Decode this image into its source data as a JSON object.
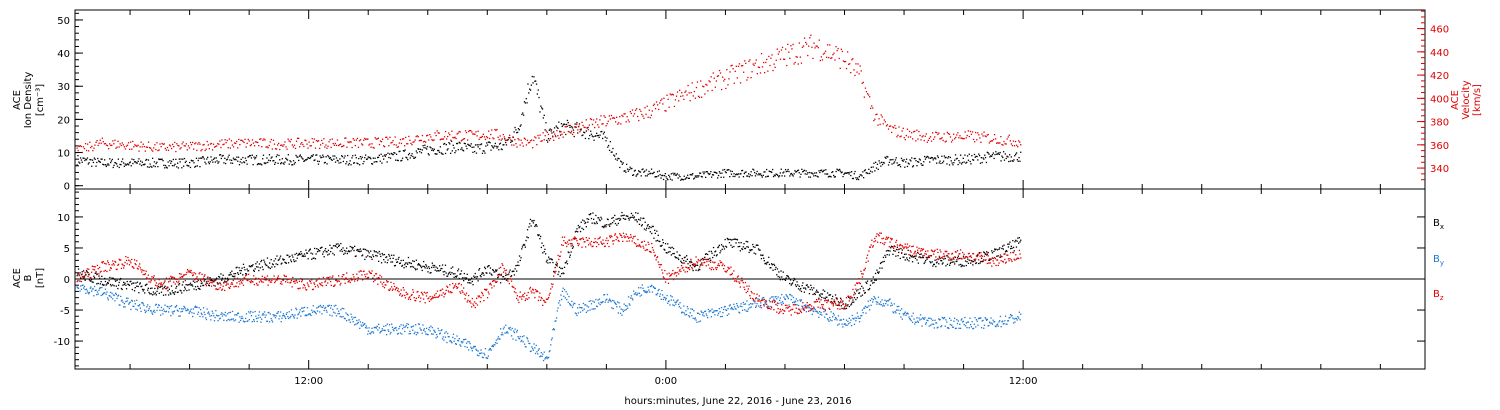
{
  "colors": {
    "density": "#000000",
    "velocity": "#e00000",
    "bx": "#000000",
    "by": "#1e78d2",
    "bz": "#e00000"
  },
  "xaxis": {
    "title": "hours:minutes, June 22, 2016 - June 23, 2016",
    "range_hours": [
      4.15,
      49.5
    ],
    "major_ticks": [
      {
        "hour": 12,
        "label": "12:00"
      },
      {
        "hour": 24,
        "label": "0:00"
      },
      {
        "hour": 36,
        "label": "12:00"
      }
    ],
    "minor_tick_step_hours": 2
  },
  "chart_data": [
    {
      "type": "scatter",
      "panel": "ion-density-velocity",
      "ylabel_left": [
        "ACE",
        "Ion Density",
        "[cm⁻³]"
      ],
      "ylabel_right": [
        "ACE",
        "Velocity",
        "[km/s]"
      ],
      "left_ylim": [
        -1,
        53
      ],
      "left_ticks": [
        0,
        10,
        20,
        30,
        40,
        50
      ],
      "right_ylim": [
        322,
        476
      ],
      "right_ticks": [
        340,
        360,
        380,
        400,
        420,
        440,
        460
      ],
      "series": [
        {
          "axis": "left",
          "x_hours": [
            4.2,
            5.0,
            6.0,
            7.0,
            8.0,
            9.0,
            10.0,
            11.0,
            12.0,
            13.0,
            14.0,
            15.0,
            16.0,
            17.0,
            17.5,
            18.0,
            18.5,
            19.0,
            19.5,
            20.0,
            20.5,
            21.0,
            21.5,
            22.0,
            22.5,
            23.0,
            23.5,
            24.0,
            25.0,
            26.0,
            27.0,
            28.0,
            29.0,
            30.0,
            30.5,
            31.0,
            31.5,
            32.0,
            33.0,
            34.0,
            35.0,
            35.9
          ],
          "values": [
            8,
            7,
            7,
            7,
            7,
            8,
            8,
            8,
            8,
            8,
            8,
            9,
            11,
            12,
            11,
            12,
            12,
            17,
            34,
            15,
            18,
            17,
            16,
            14,
            6,
            4,
            4,
            3,
            3,
            4,
            4,
            4,
            4,
            4,
            3,
            6,
            8,
            7,
            8,
            8,
            9,
            9
          ]
        },
        {
          "axis": "right",
          "x_hours": [
            4.2,
            5.0,
            6.0,
            7.0,
            8.0,
            9.0,
            10.0,
            11.0,
            12.0,
            13.0,
            14.0,
            15.0,
            16.0,
            17.0,
            17.5,
            18.0,
            18.5,
            19.0,
            19.5,
            20.0,
            20.5,
            21.0,
            21.5,
            22.0,
            22.5,
            23.0,
            23.5,
            24.0,
            25.0,
            26.0,
            27.0,
            28.0,
            29.0,
            30.0,
            30.5,
            31.0,
            31.5,
            32.0,
            33.0,
            34.0,
            35.0,
            35.9
          ],
          "values": [
            355,
            362,
            360,
            358,
            359,
            361,
            362,
            361,
            362,
            362,
            362,
            363,
            368,
            369,
            368,
            370,
            368,
            363,
            362,
            368,
            372,
            375,
            378,
            381,
            383,
            386,
            390,
            396,
            408,
            418,
            428,
            437,
            446,
            434,
            420,
            385,
            374,
            370,
            367,
            368,
            366,
            363
          ]
        }
      ]
    },
    {
      "type": "scatter",
      "panel": "magnetic-field",
      "ylabel_left": [
        "ACE",
        "B",
        "[nT]"
      ],
      "ylim": [
        -14.5,
        14.5
      ],
      "ticks": [
        -10,
        -5,
        0,
        5,
        10
      ],
      "zero_line": true,
      "legend": [
        "Bx",
        "By",
        "Bz"
      ],
      "series": [
        {
          "name": "Bx",
          "x_hours": [
            4.2,
            5.0,
            6.0,
            7.0,
            8.0,
            9.0,
            10.0,
            11.0,
            12.0,
            13.0,
            14.0,
            15.0,
            16.0,
            17.0,
            17.5,
            18.0,
            18.5,
            19.0,
            19.5,
            20.0,
            20.5,
            21.0,
            21.5,
            22.0,
            22.5,
            23.0,
            23.5,
            24.0,
            25.0,
            26.0,
            27.0,
            28.0,
            29.0,
            30.0,
            30.5,
            31.0,
            31.5,
            32.0,
            33.0,
            34.0,
            35.0,
            35.9
          ],
          "values": [
            1,
            0,
            -1,
            -2,
            -1,
            0,
            2,
            3,
            4,
            5,
            4,
            3,
            2,
            1,
            0,
            2,
            0,
            2,
            10,
            3,
            1,
            8,
            10,
            9,
            10,
            10,
            8,
            5,
            2,
            6,
            5,
            0,
            -2,
            -4,
            -2,
            0,
            5,
            4,
            3,
            3,
            4,
            6
          ]
        },
        {
          "name": "By",
          "x_hours": [
            4.2,
            5.0,
            6.0,
            7.0,
            8.0,
            9.0,
            10.0,
            11.0,
            12.0,
            13.0,
            14.0,
            15.0,
            16.0,
            17.0,
            17.5,
            18.0,
            18.5,
            19.0,
            19.5,
            20.0,
            20.5,
            21.0,
            21.5,
            22.0,
            22.5,
            23.0,
            23.5,
            24.0,
            25.0,
            26.0,
            27.0,
            28.0,
            29.0,
            30.0,
            30.5,
            31.0,
            31.5,
            32.0,
            33.0,
            34.0,
            35.0,
            35.9
          ],
          "values": [
            -1,
            -2,
            -4,
            -5,
            -5,
            -6,
            -6,
            -6,
            -5,
            -5,
            -8,
            -8,
            -8,
            -10,
            -11,
            -12,
            -8,
            -9,
            -11,
            -13,
            -2,
            -5,
            -4,
            -3,
            -5,
            -2,
            -1,
            -3,
            -6,
            -5,
            -4,
            -3,
            -5,
            -7,
            -6,
            -3,
            -4,
            -6,
            -7,
            -7,
            -7,
            -6
          ]
        },
        {
          "name": "Bz",
          "x_hours": [
            4.2,
            5.0,
            6.0,
            7.0,
            8.0,
            9.0,
            10.0,
            11.0,
            12.0,
            13.0,
            14.0,
            15.0,
            16.0,
            17.0,
            17.5,
            18.0,
            18.5,
            19.0,
            19.5,
            20.0,
            20.5,
            21.0,
            21.5,
            22.0,
            22.5,
            23.0,
            23.5,
            24.0,
            25.0,
            26.0,
            27.0,
            28.0,
            29.0,
            30.0,
            30.5,
            31.0,
            31.5,
            32.0,
            33.0,
            34.0,
            35.0,
            35.9
          ],
          "values": [
            0,
            2,
            3,
            -1,
            1,
            -1,
            0,
            0,
            -1,
            0,
            1,
            -2,
            -3,
            -1,
            -4,
            -2,
            2,
            -3,
            -2,
            -4,
            6,
            6,
            6,
            6,
            7,
            6,
            5,
            0,
            3,
            2,
            -3,
            -5,
            -4,
            -4,
            0,
            7,
            6,
            5,
            4,
            4,
            3,
            4
          ]
        }
      ]
    }
  ]
}
